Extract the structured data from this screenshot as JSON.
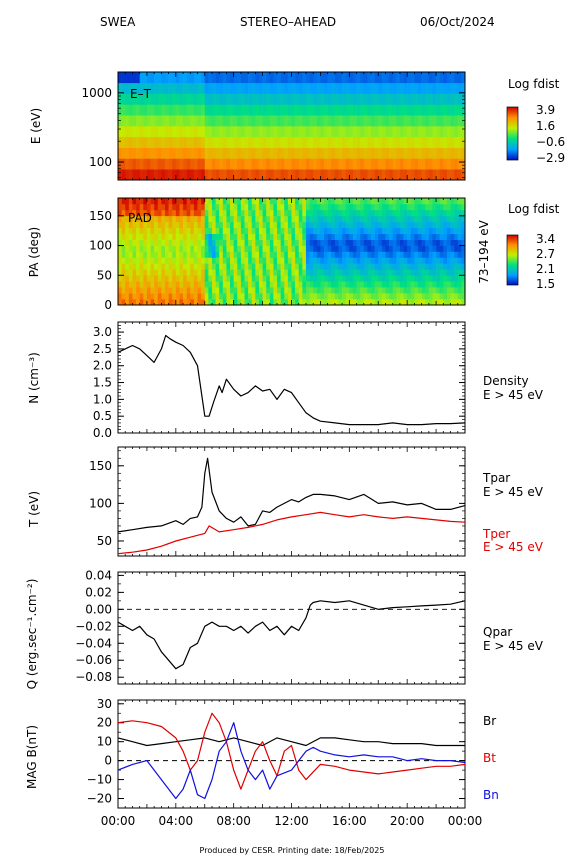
{
  "header": {
    "instrument": "SWEA",
    "spacecraft": "STEREO–AHEAD",
    "date": "06/Oct/2024"
  },
  "footer": "Produced by CESR.   Printing date: 18/Feb/2025",
  "colors": {
    "black": "#000000",
    "red": "#e00000",
    "blue": "#1010e0"
  },
  "time_axis": {
    "ticks": [
      "00:00",
      "04:00",
      "08:00",
      "12:00",
      "16:00",
      "20:00",
      "00:00"
    ],
    "range_hours": [
      0,
      24
    ]
  },
  "chart_data": [
    {
      "type": "heatmap",
      "label": "E–T",
      "ylabel": "E (eV)",
      "yscale": "log",
      "ytick_labels": [
        "1000",
        "100"
      ],
      "ytick_values": [
        1000,
        100
      ],
      "ylim": [
        55,
        2000
      ],
      "colorbar": {
        "title": "Log fdist",
        "ticks": [
          "3.9",
          "1.6",
          "−0.6",
          "−2.9"
        ],
        "range": [
          -2.9,
          3.9
        ]
      }
    },
    {
      "type": "heatmap",
      "label": "PAD",
      "ylabel": "PA (deg)",
      "ylim": [
        0,
        180
      ],
      "ytick_labels": [
        "150",
        "100",
        "50",
        "0"
      ],
      "ytick_values": [
        150,
        100,
        50,
        0
      ],
      "right_label": "73–194 eV",
      "colorbar": {
        "title": "Log fdist",
        "ticks": [
          "3.4",
          "2.7",
          "2.1",
          "1.5"
        ],
        "range": [
          1.5,
          3.4
        ]
      }
    },
    {
      "type": "line",
      "ylabel": "N (cm⁻³)",
      "ylim": [
        0,
        3.3
      ],
      "ytick_labels": [
        "3.0",
        "2.5",
        "2.0",
        "1.5",
        "1.0",
        "0.5",
        "0.0"
      ],
      "ytick_values": [
        3.0,
        2.5,
        2.0,
        1.5,
        1.0,
        0.5,
        0.0
      ],
      "series": [
        {
          "name": "Density",
          "sub": "E > 45 eV",
          "color": "#000000",
          "x": [
            0,
            0.5,
            1,
            1.5,
            2,
            2.5,
            3,
            3.3,
            3.6,
            4,
            4.5,
            5,
            5.5,
            5.8,
            6,
            6.3,
            6.6,
            7,
            7.2,
            7.5,
            8,
            8.5,
            9,
            9.5,
            10,
            10.5,
            11,
            11.5,
            12,
            12.5,
            13,
            13.5,
            14,
            15,
            16,
            17,
            18,
            19,
            20,
            21,
            22,
            23,
            24
          ],
          "y": [
            2.4,
            2.5,
            2.6,
            2.5,
            2.3,
            2.1,
            2.5,
            2.9,
            2.8,
            2.7,
            2.6,
            2.4,
            2.0,
            1.1,
            0.5,
            0.5,
            0.9,
            1.4,
            1.2,
            1.6,
            1.3,
            1.1,
            1.2,
            1.4,
            1.25,
            1.3,
            1.0,
            1.3,
            1.2,
            0.9,
            0.6,
            0.45,
            0.35,
            0.3,
            0.25,
            0.25,
            0.25,
            0.3,
            0.25,
            0.25,
            0.28,
            0.28,
            0.3
          ]
        }
      ]
    },
    {
      "type": "line",
      "ylabel": "T (eV)",
      "ylim": [
        30,
        175
      ],
      "ytick_labels": [
        "150",
        "100",
        "50"
      ],
      "ytick_values": [
        150,
        100,
        50
      ],
      "series": [
        {
          "name": "Tpar",
          "sub": "E > 45 eV",
          "color": "#000000",
          "x": [
            0,
            1,
            2,
            3,
            4,
            4.5,
            5,
            5.5,
            5.8,
            6,
            6.2,
            6.5,
            7,
            7.5,
            8,
            8.5,
            9,
            9.5,
            10,
            10.5,
            11,
            12,
            12.5,
            13,
            13.5,
            14,
            15,
            16,
            17,
            18,
            19,
            20,
            21,
            22,
            23,
            24
          ],
          "y": [
            62,
            65,
            68,
            70,
            77,
            72,
            80,
            82,
            95,
            140,
            160,
            115,
            90,
            80,
            75,
            82,
            70,
            72,
            90,
            88,
            95,
            105,
            102,
            108,
            112,
            112,
            110,
            105,
            112,
            100,
            102,
            98,
            100,
            92,
            92,
            97
          ]
        },
        {
          "name": "Tper",
          "sub": "E > 45 eV",
          "color": "#e00000",
          "x": [
            0,
            1,
            2,
            3,
            4,
            5,
            6,
            6.3,
            7,
            8,
            9,
            10,
            11,
            12,
            13,
            14,
            15,
            16,
            17,
            18,
            19,
            20,
            21,
            22,
            23,
            24
          ],
          "y": [
            33,
            35,
            38,
            43,
            50,
            55,
            60,
            70,
            62,
            65,
            68,
            72,
            78,
            82,
            85,
            88,
            85,
            82,
            85,
            82,
            80,
            82,
            80,
            78,
            76,
            75
          ]
        }
      ]
    },
    {
      "type": "line",
      "ylabel": "Q (erg.sec⁻¹.cm⁻²)",
      "ylim": [
        -0.088,
        0.044
      ],
      "ytick_labels": [
        "0.04",
        "0.02",
        "0.00",
        "−0.02",
        "−0.04",
        "−0.06",
        "−0.08"
      ],
      "ytick_values": [
        0.04,
        0.02,
        0.0,
        -0.02,
        -0.04,
        -0.06,
        -0.08
      ],
      "series": [
        {
          "name": "Qpar",
          "sub": "E > 45 eV",
          "color": "#000000",
          "x": [
            0,
            0.5,
            1,
            1.5,
            2,
            2.5,
            3,
            3.5,
            4,
            4.5,
            5,
            5.5,
            6,
            6.5,
            7,
            7.5,
            8,
            8.5,
            9,
            9.5,
            10,
            10.5,
            11,
            11.5,
            12,
            12.5,
            13,
            13.3,
            13.5,
            14,
            15,
            16,
            17,
            18,
            19,
            20,
            21,
            22,
            23,
            24
          ],
          "y": [
            -0.015,
            -0.02,
            -0.025,
            -0.02,
            -0.03,
            -0.035,
            -0.05,
            -0.06,
            -0.07,
            -0.065,
            -0.045,
            -0.04,
            -0.02,
            -0.015,
            -0.02,
            -0.02,
            -0.025,
            -0.02,
            -0.028,
            -0.02,
            -0.015,
            -0.025,
            -0.02,
            -0.03,
            -0.02,
            -0.025,
            -0.01,
            0.005,
            0.008,
            0.01,
            0.008,
            0.01,
            0.005,
            0.0,
            0.002,
            0.003,
            0.004,
            0.005,
            0.006,
            0.01
          ]
        }
      ]
    },
    {
      "type": "line",
      "ylabel": "MAG B(nT)",
      "ylim": [
        -25,
        32
      ],
      "ytick_labels": [
        "30",
        "20",
        "10",
        "0",
        "−10",
        "−20"
      ],
      "ytick_values": [
        30,
        20,
        10,
        0,
        -10,
        -20
      ],
      "series": [
        {
          "name": "Br",
          "color": "#000000",
          "x": [
            0,
            1,
            2,
            3,
            4,
            5,
            6,
            7,
            8,
            9,
            10,
            11,
            12,
            13,
            14,
            15,
            16,
            17,
            18,
            19,
            20,
            21,
            22,
            23,
            24
          ],
          "y": [
            12,
            10,
            8,
            9,
            10,
            11,
            12,
            10,
            12,
            10,
            8,
            12,
            10,
            8,
            12,
            12,
            11,
            10,
            10,
            9,
            9,
            9,
            8,
            8,
            8
          ]
        },
        {
          "name": "Bt",
          "color": "#e00000",
          "x": [
            0,
            1,
            2,
            3,
            4,
            4.5,
            5,
            5.5,
            6,
            6.5,
            7,
            7.5,
            8,
            8.5,
            9,
            9.5,
            10,
            10.5,
            11,
            11.5,
            12,
            12.5,
            13,
            14,
            15,
            16,
            17,
            18,
            19,
            20,
            21,
            22,
            23,
            24
          ],
          "y": [
            20,
            21,
            20,
            18,
            12,
            5,
            -5,
            0,
            15,
            25,
            20,
            10,
            -5,
            -15,
            -5,
            5,
            10,
            0,
            -8,
            5,
            8,
            -5,
            -10,
            -2,
            -3,
            -5,
            -6,
            -7,
            -6,
            -5,
            -4,
            -3,
            -3,
            -2
          ]
        },
        {
          "name": "Bn",
          "color": "#1010e0",
          "x": [
            0,
            1,
            2,
            3,
            4,
            4.5,
            5,
            5.5,
            6,
            6.5,
            7,
            7.5,
            8,
            8.5,
            9,
            9.5,
            10,
            10.5,
            11,
            12,
            13,
            13.5,
            14,
            15,
            16,
            17,
            18,
            19,
            20,
            21,
            22,
            23,
            24
          ],
          "y": [
            -5,
            -2,
            0,
            -10,
            -20,
            -15,
            -5,
            -18,
            -20,
            -10,
            5,
            10,
            20,
            5,
            -5,
            -10,
            -5,
            -15,
            -8,
            -5,
            5,
            7,
            5,
            3,
            2,
            3,
            2,
            2,
            0,
            1,
            0,
            0,
            -1
          ]
        }
      ]
    }
  ]
}
